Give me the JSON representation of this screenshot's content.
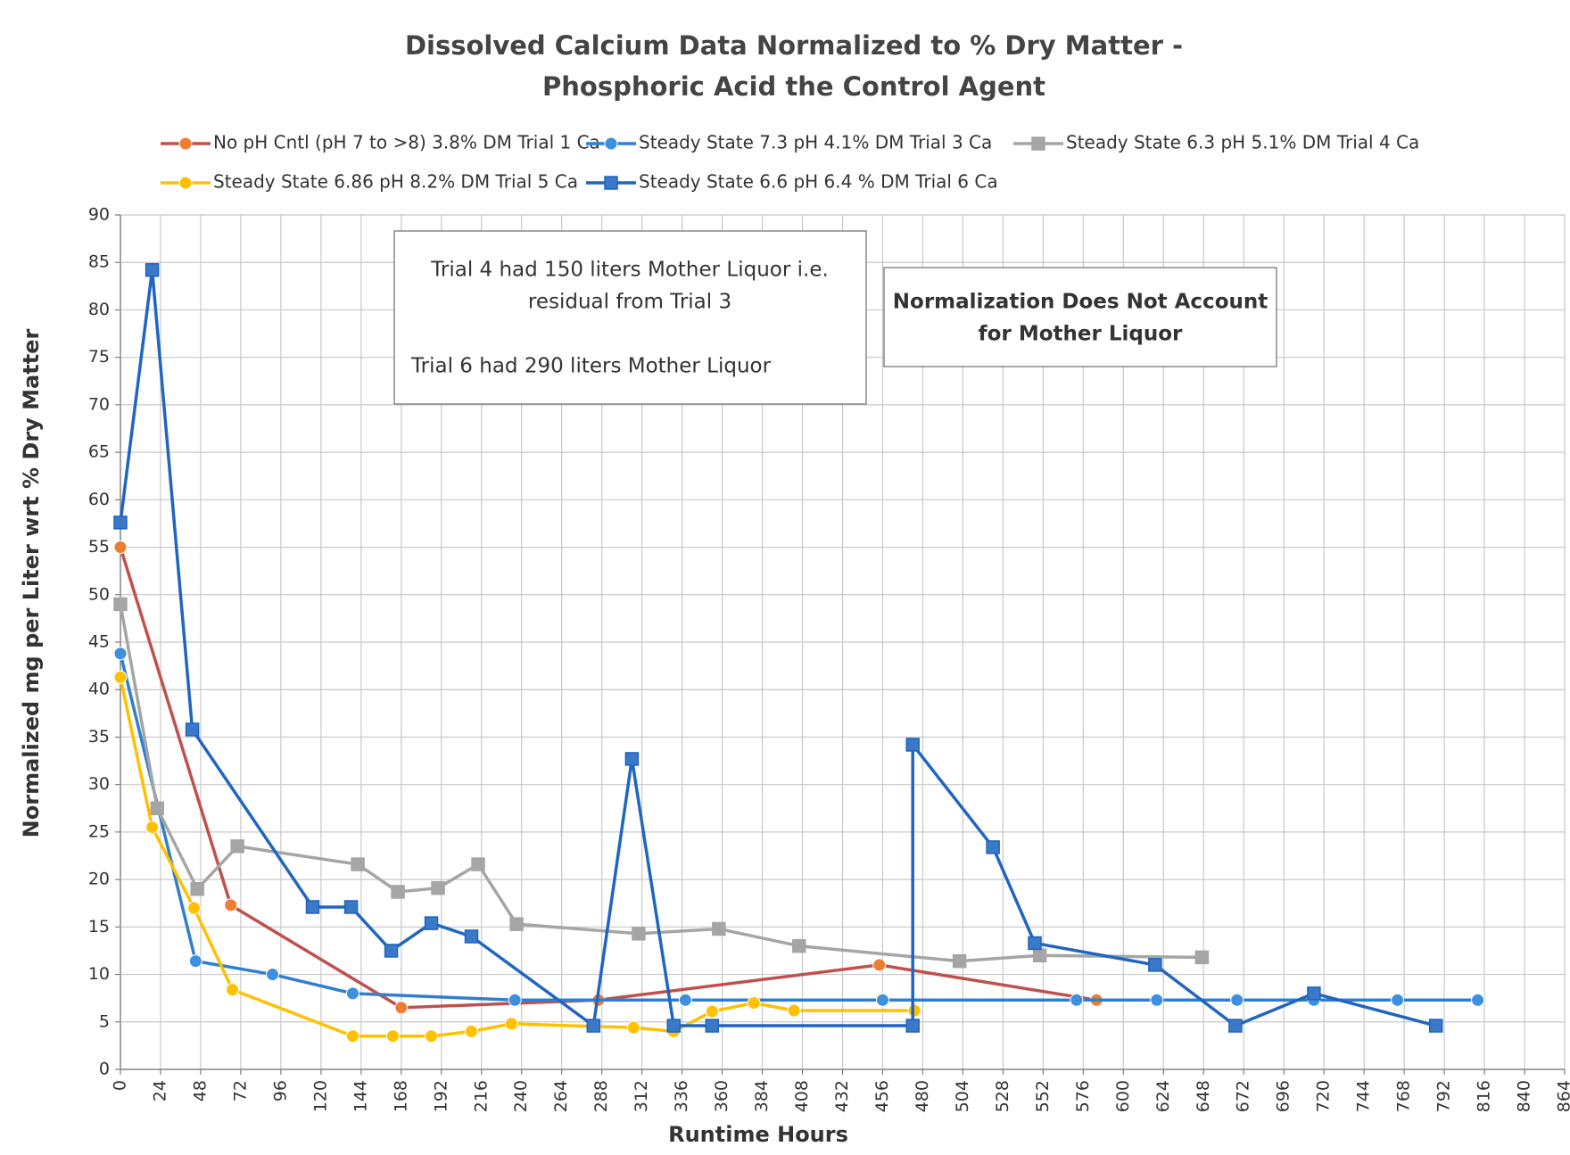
{
  "chart_data": {
    "type": "line",
    "title": [
      "Dissolved Calcium Data Normalized to % Dry Matter -",
      "Phosphoric Acid the Control Agent"
    ],
    "xlabel": "Runtime Hours",
    "ylabel": "Normalized mg per Liter wrt % Dry Matter",
    "xlim": [
      0,
      864
    ],
    "xticks": [
      0,
      24,
      48,
      72,
      96,
      120,
      144,
      168,
      192,
      216,
      240,
      264,
      288,
      312,
      336,
      360,
      384,
      408,
      432,
      456,
      480,
      504,
      528,
      552,
      576,
      600,
      624,
      648,
      672,
      696,
      720,
      744,
      768,
      792,
      816,
      840,
      864
    ],
    "ylim": [
      0,
      90
    ],
    "yticks": [
      0,
      5,
      10,
      15,
      20,
      25,
      30,
      35,
      40,
      45,
      50,
      55,
      60,
      65,
      70,
      75,
      80,
      85,
      90
    ],
    "grid": true,
    "legend": "top",
    "series": [
      {
        "name": "No pH Cntl (pH 7 to >8) 3.8% DM Trial 1 Ca",
        "color": "#c0504d",
        "marker_color": "#ed7d31",
        "marker": "circle",
        "x": [
          0,
          66,
          168,
          286,
          454,
          584
        ],
        "values": [
          55,
          17.3,
          6.5,
          7.3,
          11,
          7.3
        ]
      },
      {
        "name": "Steady State 7.3 pH 4.1% DM Trial 3 Ca",
        "color": "#2f7fd0",
        "marker_color": "#3d8fe0",
        "marker": "circle",
        "x": [
          0,
          45,
          91,
          139,
          236,
          338,
          456,
          572,
          620,
          668,
          714,
          764,
          812
        ],
        "values": [
          43.8,
          11.4,
          10,
          8,
          7.3,
          7.3,
          7.3,
          7.3,
          7.3,
          7.3,
          7.3,
          7.3,
          7.3
        ]
      },
      {
        "name": "Steady State 6.3 pH 5.1% DM Trial 4 Ca",
        "color": "#a5a5a5",
        "marker_color": "#a5a5a5",
        "marker": "square",
        "x": [
          0,
          22,
          46,
          70,
          142,
          166,
          190,
          214,
          237,
          310,
          358,
          406,
          502,
          550,
          647
        ],
        "values": [
          49,
          27.5,
          19,
          23.5,
          21.6,
          18.7,
          19.1,
          21.6,
          15.3,
          14.3,
          14.8,
          13,
          11.4,
          12,
          11.8
        ]
      },
      {
        "name": "Steady State 6.86 pH 8.2% DM Trial 5 Ca",
        "color": "#ffc000",
        "marker_color": "#ffc000",
        "marker": "circle",
        "x": [
          0,
          19,
          44,
          67,
          139,
          163,
          186,
          210,
          234,
          307,
          331,
          354,
          379,
          403,
          475
        ],
        "values": [
          41.3,
          25.5,
          17,
          8.4,
          3.5,
          3.5,
          3.5,
          4,
          4.8,
          4.4,
          4,
          6.1,
          7,
          6.2,
          6.2
        ]
      },
      {
        "name": "Steady State 6.6 pH 6.4 % DM Trial 6 Ca",
        "color": "#2065c0",
        "marker_color": "#3a78c8",
        "marker": "square",
        "x": [
          0,
          19,
          43,
          115,
          138,
          162,
          186,
          210,
          283,
          306,
          331,
          354,
          474,
          474,
          522,
          547,
          619,
          667,
          714,
          787
        ],
        "values": [
          57.6,
          84.2,
          35.8,
          17.1,
          17.1,
          12.5,
          15.4,
          14,
          4.6,
          32.7,
          4.6,
          4.6,
          4.6,
          34.2,
          23.4,
          13.3,
          11,
          4.6,
          8,
          4.6
        ]
      }
    ],
    "annotations": [
      {
        "lines": [
          "Trial 4 had 150 liters Mother Liquor i.e.",
          "residual from Trial 3",
          "Trial 6 had 290 liters Mother Liquor"
        ]
      },
      {
        "lines": [
          "Normalization Does Not Account",
          "for Mother Liquor"
        ]
      }
    ]
  }
}
